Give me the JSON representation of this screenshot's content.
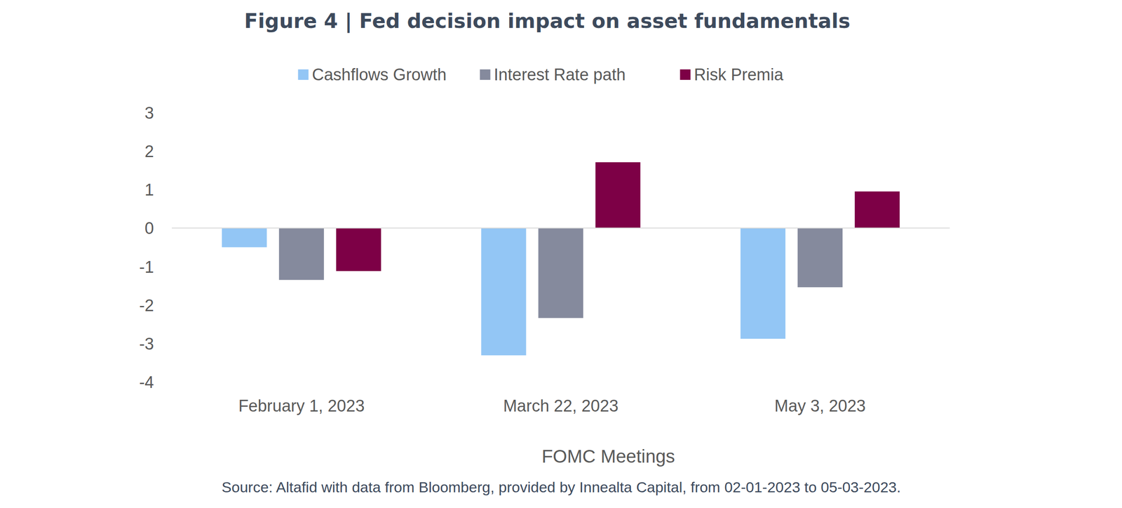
{
  "chart_data": {
    "type": "bar",
    "title": "Figure 4 | Fed decision impact on asset fundamentals",
    "x_label": "FOMC Meetings",
    "source": "Source: Altafid with data from Bloomberg, provided by Innealta Capital, from 02-01-2023 to 05-03-2023.",
    "categories": [
      "February 1, 2023",
      "March 22, 2023",
      "May 3, 2023"
    ],
    "series": [
      {
        "name": "Cashflows Growth",
        "color": "#93c6f5",
        "values": [
          -0.5,
          -3.31,
          -2.88
        ]
      },
      {
        "name": "Interest Rate path",
        "color": "#858a9d",
        "values": [
          -1.35,
          -2.34,
          -1.54
        ]
      },
      {
        "name": "Risk Premia",
        "color": "#7d0046",
        "values": [
          -1.12,
          1.71,
          0.95
        ]
      }
    ],
    "ylim": [
      -4,
      3
    ],
    "yticks": [
      -4,
      -3,
      -2,
      -1,
      0,
      1,
      2,
      3
    ],
    "grid": false,
    "legend": "top"
  }
}
